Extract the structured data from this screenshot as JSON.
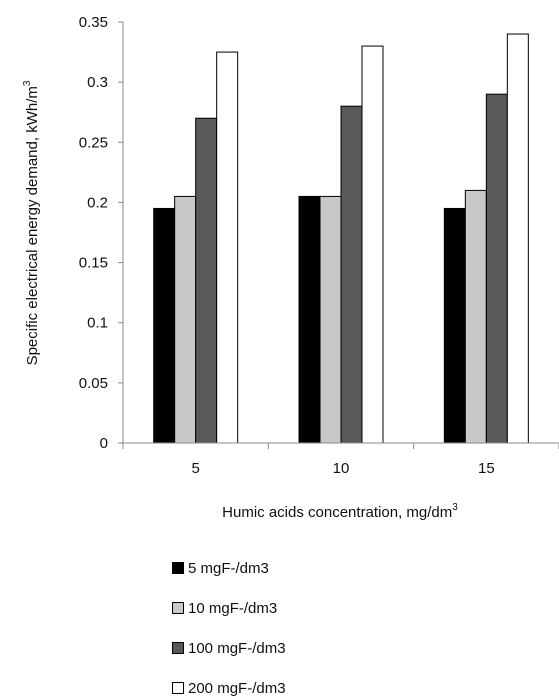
{
  "chart_data": {
    "type": "bar",
    "categories": [
      "5",
      "10",
      "15"
    ],
    "series": [
      {
        "name": "5 mgF-/dm3",
        "color": "#000000",
        "values": [
          0.195,
          0.205,
          0.195
        ]
      },
      {
        "name": "10 mgF-/dm3",
        "color": "#c8c8c8",
        "values": [
          0.205,
          0.205,
          0.21
        ]
      },
      {
        "name": "100 mgF-/dm3",
        "color": "#595959",
        "values": [
          0.27,
          0.28,
          0.29
        ]
      },
      {
        "name": "200 mgF-/dm3",
        "color": "#ffffff",
        "values": [
          0.325,
          0.33,
          0.34
        ]
      }
    ],
    "xlabel": "Humic acids concentration, mg/dm",
    "xlabel_sup": "3",
    "ylabel": "Specific electrical energy demand, kWh/m",
    "ylabel_sup": "3",
    "ylim": [
      0,
      0.35
    ],
    "yticks": [
      "0",
      "0.05",
      "0.1",
      "0.15",
      "0.2",
      "0.25",
      "0.3",
      "0.35"
    ],
    "legend_position": "bottom",
    "grid": false
  }
}
